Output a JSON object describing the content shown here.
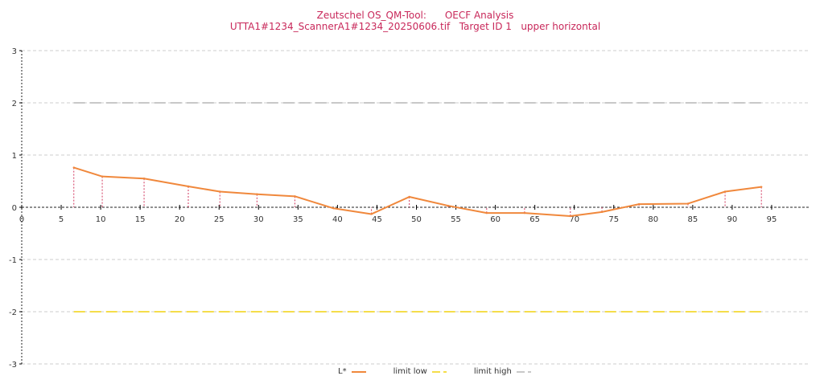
{
  "title_line1": "Zeutschel OS_QM-Tool:      OECF Analysis",
  "title_line2": "UTTA1#1234_ScannerA1#1234_20250606.tif   Target ID 1   upper horizontal",
  "legend": [
    {
      "label": "L*",
      "color": "#f0883c"
    },
    {
      "label": "limit low",
      "color": "#f5dd4a"
    },
    {
      "label": "limit high",
      "color": "#c8c8c8"
    }
  ],
  "chart_data": {
    "type": "line",
    "xlim": [
      0,
      99
    ],
    "ylim": [
      -3,
      3
    ],
    "x_ticks": [
      "0",
      "5",
      "10",
      "15",
      "20",
      "25",
      "30",
      "35",
      "40",
      "45",
      "50",
      "55",
      "60",
      "65",
      "70",
      "75",
      "80",
      "85",
      "90",
      "95"
    ],
    "y_ticks": [
      "3",
      "2",
      "1",
      "0",
      "-1",
      "-2",
      "-3"
    ],
    "grid": true,
    "legend_position": "bottom",
    "series": [
      {
        "name": "L*",
        "color": "#f0883c",
        "x": [
          6.6,
          10.2,
          15.5,
          21.1,
          25.1,
          29.8,
          34.6,
          39.5,
          44.3,
          49.1,
          54.0,
          58.9,
          63.7,
          69.5,
          73.5,
          78.2,
          84.4,
          89.1,
          93.7
        ],
        "y": [
          0.76,
          0.59,
          0.55,
          0.4,
          0.3,
          0.25,
          0.21,
          -0.02,
          -0.13,
          0.2,
          0.03,
          -0.11,
          -0.11,
          -0.17,
          -0.09,
          0.06,
          0.07,
          0.3,
          0.39
        ]
      },
      {
        "name": "limit low",
        "color": "#f5dd4a",
        "x": [
          6.6,
          93.7
        ],
        "y": [
          -2,
          -2
        ]
      },
      {
        "name": "limit high",
        "color": "#c8c8c8",
        "x": [
          6.6,
          93.7
        ],
        "y": [
          2,
          2
        ]
      }
    ],
    "drop_line_color": "#d2385f"
  }
}
